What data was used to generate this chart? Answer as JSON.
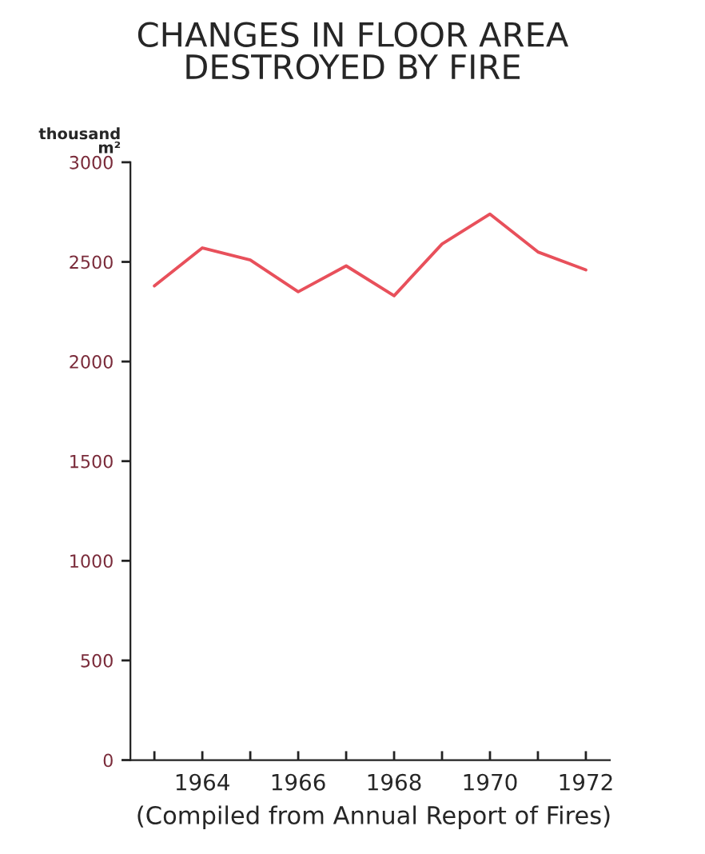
{
  "chart_data": {
    "type": "line",
    "title": "CHANGES IN FLOOR AREA\nDESTROYED BY FIRE",
    "ylabel": "thousand\nm²",
    "x": [
      1963,
      1964,
      1965,
      1966,
      1967,
      1968,
      1969,
      1970,
      1971,
      1972
    ],
    "series": [
      {
        "color": "#e8505b",
        "values": [
          2380,
          2570,
          2510,
          2350,
          2480,
          2330,
          2590,
          2740,
          2550,
          2460
        ]
      }
    ],
    "xlim": [
      1962.5,
      1972.5
    ],
    "xticks": [
      {
        "value": 1963,
        "label": null
      },
      1964,
      {
        "value": 1965,
        "label": null
      },
      1966,
      {
        "value": 1967,
        "label": null
      },
      1968,
      {
        "value": 1969,
        "label": null
      },
      1970,
      {
        "value": 1971,
        "label": null
      },
      1972
    ],
    "ylim": [
      0,
      3000
    ],
    "yticks": [
      0,
      500,
      1000,
      1500,
      2000,
      2500,
      3000
    ],
    "grid": false,
    "legend": false,
    "marker": "none",
    "line_style": "solid",
    "annotations": [
      "(Compiled from Annual Report of Fires)"
    ]
  }
}
